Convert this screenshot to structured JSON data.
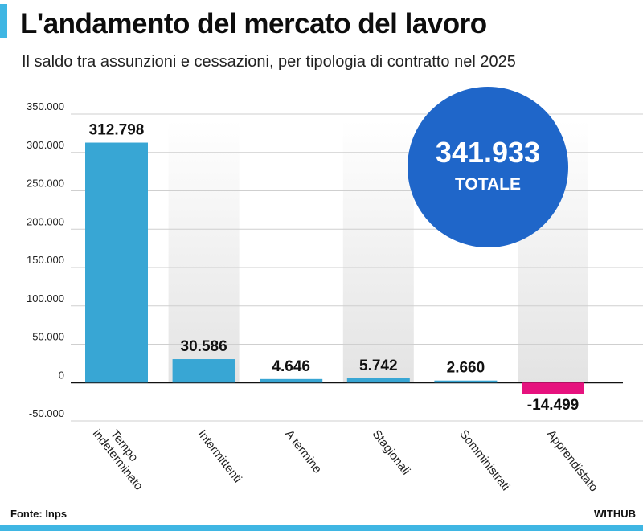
{
  "header": {
    "title": "L'andamento del mercato del lavoro",
    "subtitle": "Il saldo tra assunzioni e cessazioni, per tipologia di contratto nel 2025"
  },
  "total": {
    "value": "341.933",
    "label": "TOTALE"
  },
  "footer": {
    "source": "Fonte: Inps",
    "brand": "WITHUB"
  },
  "colors": {
    "positive": "#38a6d4",
    "negative": "#e6127e",
    "total_circle": "#1f66c9",
    "accent": "#3fb6e3"
  },
  "chart_data": {
    "type": "bar",
    "title": "L'andamento del mercato del lavoro",
    "subtitle": "Il saldo tra assunzioni e cessazioni, per tipologia di contratto nel 2025",
    "xlabel": "",
    "ylabel": "",
    "categories": [
      "Tempo indeterminato",
      "Intermittenti",
      "A termine",
      "Stagionali",
      "Somministrati",
      "Apprendistato"
    ],
    "values": [
      312798,
      30586,
      4646,
      5742,
      2660,
      -14499
    ],
    "value_labels": [
      "312.798",
      "30.586",
      "4.646",
      "5.742",
      "2.660",
      "-14.499"
    ],
    "ylim": [
      -50000,
      350000
    ],
    "yticks": [
      350000,
      300000,
      250000,
      200000,
      150000,
      100000,
      50000,
      0,
      -50000
    ],
    "ytick_labels": [
      "350.000",
      "300.000",
      "250.000",
      "200.000",
      "150.000",
      "100.000",
      "50.000",
      "0",
      "-50.000"
    ],
    "grid": true
  }
}
